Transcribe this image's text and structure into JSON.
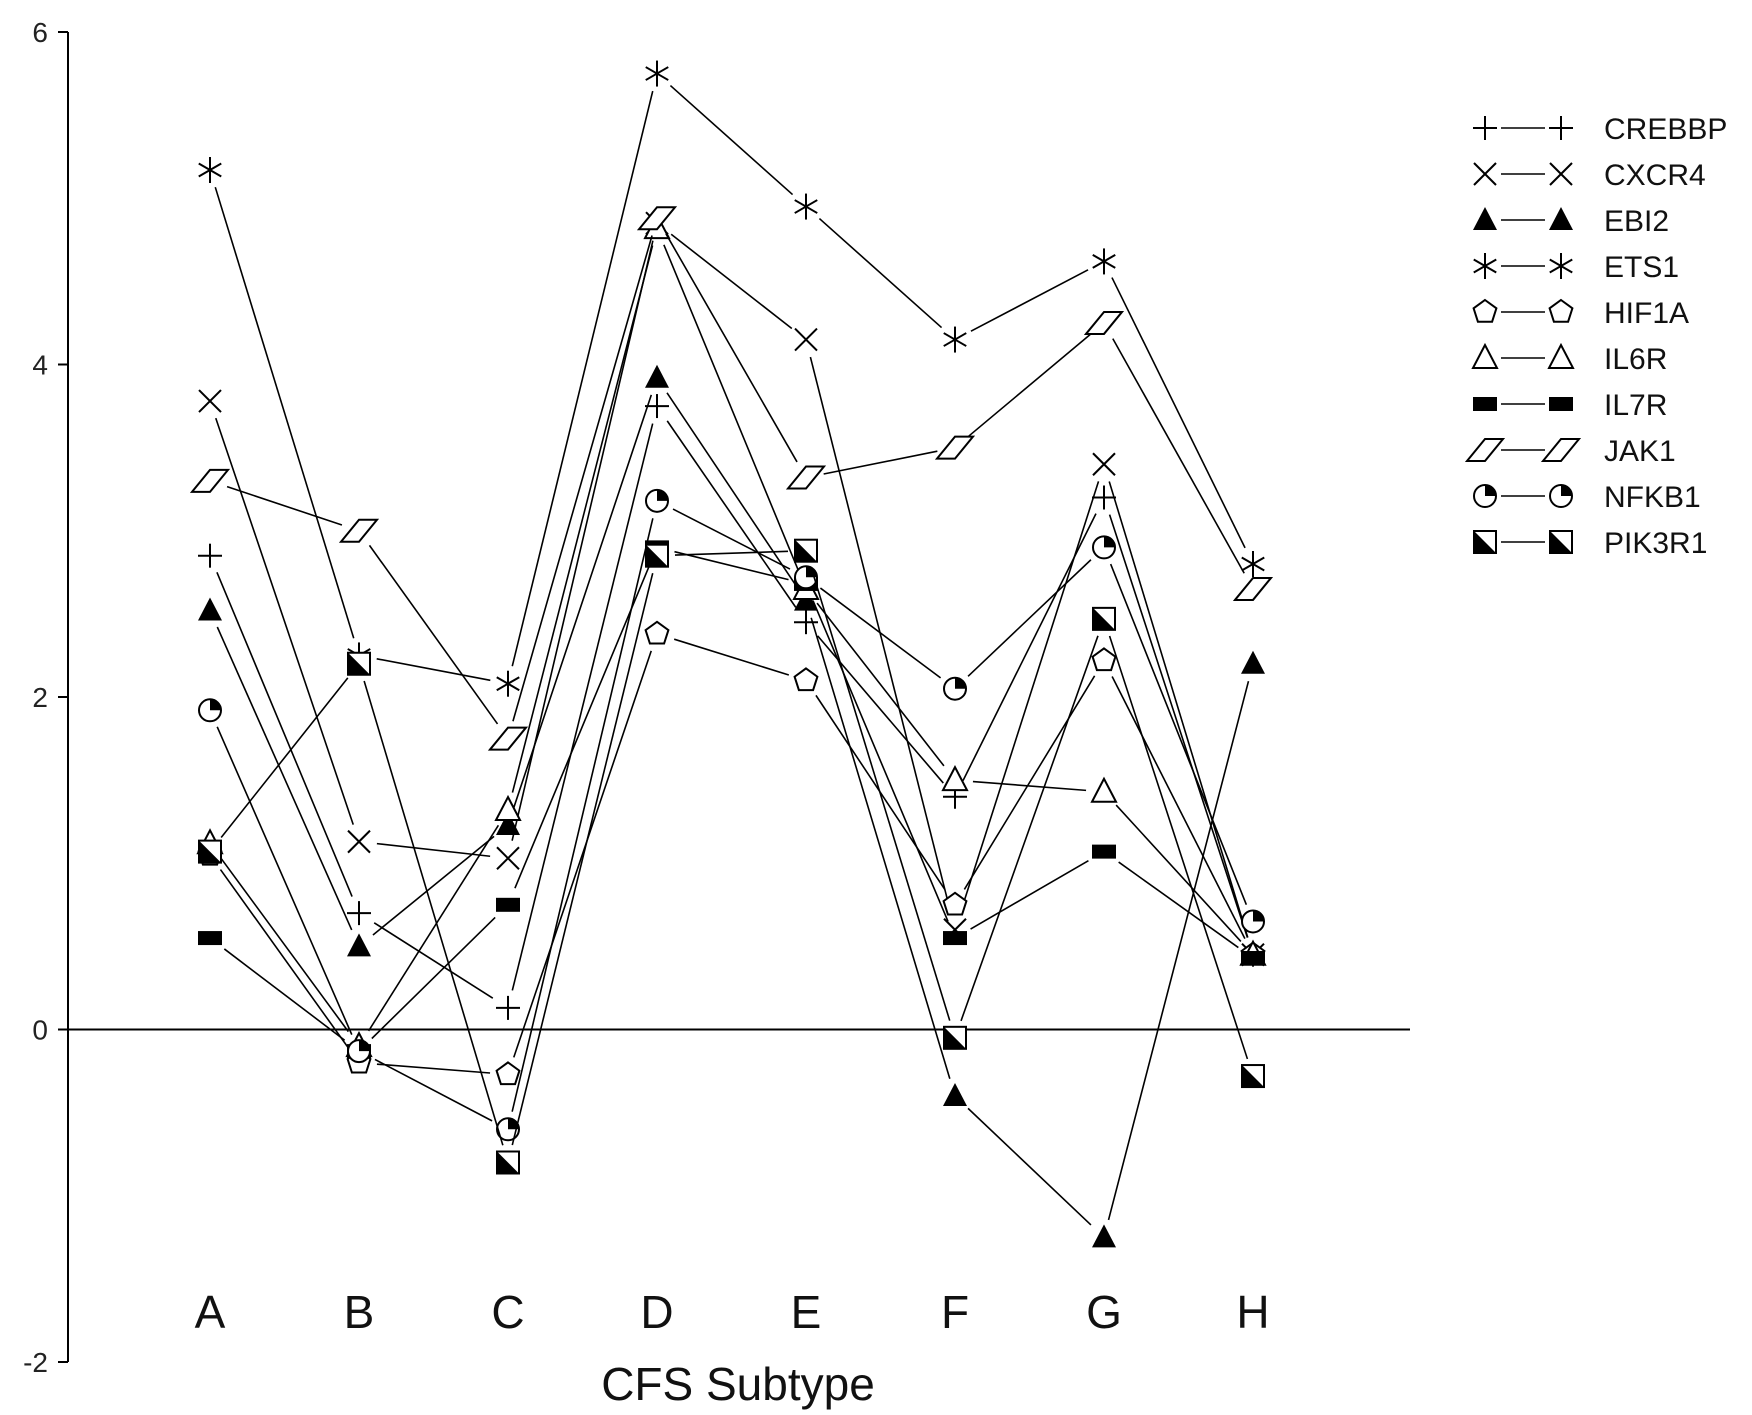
{
  "chart_data": {
    "type": "line",
    "title": "",
    "xlabel": "CFS Subtype",
    "ylabel": "",
    "categories": [
      "A",
      "B",
      "C",
      "D",
      "E",
      "F",
      "G",
      "H"
    ],
    "ylim": [
      -2,
      6
    ],
    "yticks": [
      -2,
      0,
      2,
      4,
      6
    ],
    "grid": false,
    "legend_position": "top-right",
    "series": [
      {
        "name": "CREBBP",
        "marker": "plus",
        "values": [
          2.85,
          0.7,
          0.13,
          3.75,
          2.45,
          1.4,
          3.2,
          0.45
        ]
      },
      {
        "name": "CXCR4",
        "marker": "cross",
        "values": [
          3.78,
          1.13,
          1.03,
          4.85,
          4.15,
          0.6,
          3.4,
          0.45
        ]
      },
      {
        "name": "EBI2",
        "marker": "triangle-filled",
        "values": [
          2.52,
          0.5,
          1.23,
          3.92,
          2.58,
          -0.4,
          -1.25,
          2.2
        ]
      },
      {
        "name": "ETS1",
        "marker": "asterisk",
        "values": [
          5.17,
          2.25,
          2.08,
          5.75,
          4.95,
          4.15,
          4.62,
          2.8
        ]
      },
      {
        "name": "HIF1A",
        "marker": "pentagon",
        "values": [
          1.05,
          -0.2,
          -0.27,
          2.38,
          2.1,
          0.75,
          2.22,
          0.45
        ]
      },
      {
        "name": "IL6R",
        "marker": "triangle-open",
        "values": [
          1.12,
          -0.1,
          1.32,
          4.82,
          2.65,
          1.5,
          1.43,
          0.45
        ]
      },
      {
        "name": "IL7R",
        "marker": "square-filled",
        "values": [
          0.55,
          -0.13,
          0.75,
          2.9,
          2.68,
          0.55,
          1.07,
          0.43
        ]
      },
      {
        "name": "JAK1",
        "marker": "parallelogram",
        "values": [
          3.3,
          3.0,
          1.75,
          4.88,
          3.32,
          3.5,
          4.25,
          2.65
        ]
      },
      {
        "name": "NFKB1",
        "marker": "circle-quarter",
        "values": [
          1.92,
          -0.13,
          -0.6,
          3.18,
          2.72,
          2.05,
          2.9,
          0.65
        ]
      },
      {
        "name": "PIK3R1",
        "marker": "square-half",
        "values": [
          1.07,
          2.2,
          -0.8,
          2.85,
          2.88,
          -0.05,
          2.47,
          -0.28
        ]
      }
    ]
  }
}
